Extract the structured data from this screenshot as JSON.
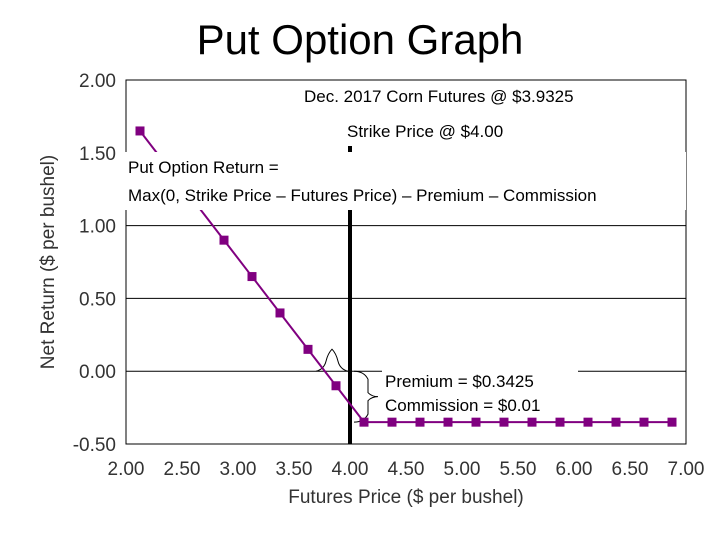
{
  "title": "Put Option Graph",
  "chart_data": {
    "type": "line",
    "title": "Put Option Graph",
    "xlabel": "Futures Price ($ per bushel)",
    "ylabel": "Net Return ($ per bushel)",
    "xlim": [
      2.0,
      7.0
    ],
    "ylim": [
      -0.5,
      2.0
    ],
    "x_ticks": [
      "2.00",
      "2.50",
      "3.00",
      "3.50",
      "4.00",
      "4.50",
      "5.00",
      "5.50",
      "6.00",
      "6.50",
      "7.00"
    ],
    "y_ticks": [
      "2.00",
      "1.50",
      "1.00",
      "0.50",
      "0.00",
      "-0.50"
    ],
    "grid": "horizontal",
    "series": [
      {
        "color": "#800080",
        "x": [
          2.125,
          2.375,
          2.625,
          2.875,
          3.125,
          3.375,
          3.625,
          3.875,
          4.125,
          4.375,
          4.625,
          4.875,
          5.125,
          5.375,
          5.625,
          5.875,
          6.125,
          6.375,
          6.625,
          6.875
        ],
        "y": [
          1.65,
          1.4,
          1.15,
          0.9,
          0.65,
          0.4,
          0.15,
          -0.1,
          -0.35,
          -0.35,
          -0.35,
          -0.35,
          -0.35,
          -0.35,
          -0.35,
          -0.35,
          -0.35,
          -0.35,
          -0.35,
          -0.35
        ]
      }
    ],
    "strike_line": {
      "x": 4.0,
      "color": "#000000"
    },
    "annotations": {
      "futures": "Dec. 2017 Corn Futures @ $3.9325",
      "strike": "Strike Price @ $4.00",
      "formula_line1": "Put Option Return =",
      "formula_line2": "Max(0, Strike Price – Futures Price) – Premium – Commission",
      "premium": "Premium = $0.3425",
      "commission": "Commission = $0.01"
    }
  }
}
